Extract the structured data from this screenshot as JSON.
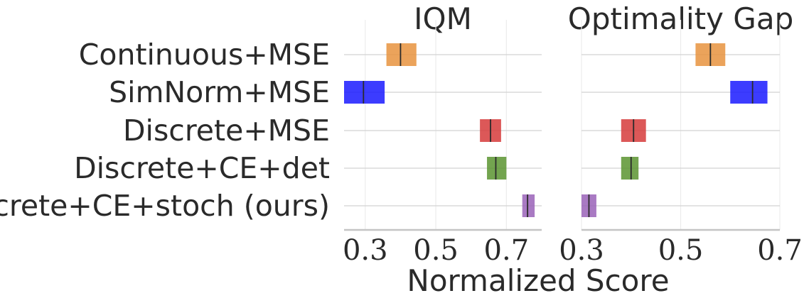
{
  "chart_data": {
    "type": "interval",
    "xlabel": "Normalized Score",
    "categories": [
      "Continuous+MSE",
      "SimNorm+MSE",
      "Discrete+MSE",
      "Discrete+CE+det",
      "Discrete+CE+stoch (ours)"
    ],
    "colors": [
      "#e8933e",
      "#1a1aff",
      "#d63b3b",
      "#5a9430",
      "#9a63b8"
    ],
    "panels": [
      {
        "title": "IQM",
        "xlim": [
          0.24,
          0.8
        ],
        "ticks": [
          0.3,
          0.5,
          0.7
        ],
        "tick_labels": [
          "0.3",
          "0.5",
          "0.7"
        ],
        "series": [
          {
            "low": 0.36,
            "point": 0.4,
            "high": 0.445
          },
          {
            "low": 0.24,
            "point": 0.295,
            "high": 0.355
          },
          {
            "low": 0.625,
            "point": 0.655,
            "high": 0.685
          },
          {
            "low": 0.645,
            "point": 0.67,
            "high": 0.7
          },
          {
            "low": 0.745,
            "point": 0.76,
            "high": 0.78
          }
        ]
      },
      {
        "title": "Optimality Gap",
        "xlim": [
          0.3,
          0.7
        ],
        "ticks": [
          0.3,
          0.5,
          0.7
        ],
        "tick_labels": [
          "0.3",
          "0.5",
          "0.7"
        ],
        "series": [
          {
            "low": 0.53,
            "point": 0.56,
            "high": 0.59
          },
          {
            "low": 0.6,
            "point": 0.645,
            "high": 0.675
          },
          {
            "low": 0.38,
            "point": 0.405,
            "high": 0.43
          },
          {
            "low": 0.38,
            "point": 0.4,
            "high": 0.415
          },
          {
            "low": 0.3,
            "point": 0.315,
            "high": 0.33
          }
        ]
      }
    ]
  }
}
